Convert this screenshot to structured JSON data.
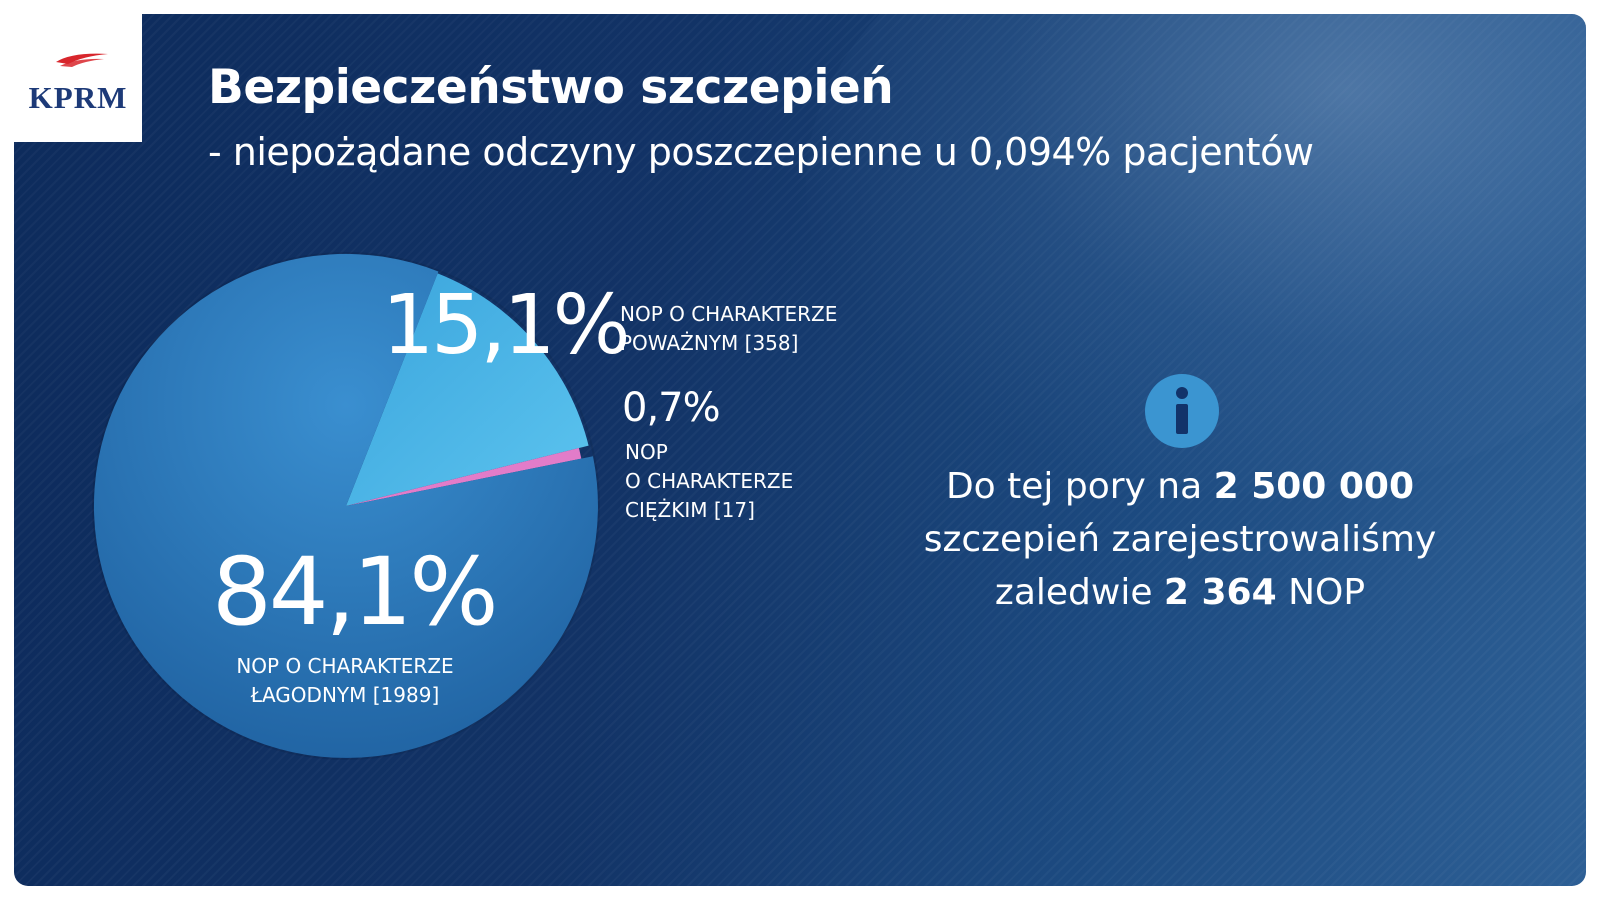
{
  "logo": {
    "text": "KPRM"
  },
  "header": {
    "title": "Bezpieczeństwo szczepień",
    "subtitle": "- niepożądane odczyny poszczepienne u 0,094% pacjentów"
  },
  "colors": {
    "background": "#12336a",
    "mild": "#2f7fc0",
    "serious": "#4db5e6",
    "severe": "#e27cc9",
    "info_icon": "#3b95d1"
  },
  "chart_data": {
    "type": "pie",
    "title": "",
    "slices": [
      {
        "pct_label": "84,1%",
        "label_lines": [
          "NOP O CHARAKTERZE",
          "ŁAGODNYM [1989]"
        ],
        "value": 1989,
        "percent": 84.1,
        "color": "#2f7fc0"
      },
      {
        "pct_label": "15,1%",
        "label_lines": [
          "NOP O CHARAKTERZE",
          "POWAŻNYM [358]"
        ],
        "value": 358,
        "percent": 15.1,
        "color": "#4db5e6"
      },
      {
        "pct_label": "0,7%",
        "label_lines": [
          "NOP",
          "O CHARAKTERZE",
          "CIĘŻKIM [17]"
        ],
        "value": 17,
        "percent": 0.7,
        "color": "#e27cc9"
      }
    ]
  },
  "info": {
    "icon": "info-icon",
    "line1_prefix": "Do tej pory na ",
    "line1_bold": "2 500 000",
    "line2": "szczepień zarejestrowaliśmy",
    "line3_prefix": "zaledwie ",
    "line3_bold": "2 364",
    "line3_suffix": " NOP"
  }
}
